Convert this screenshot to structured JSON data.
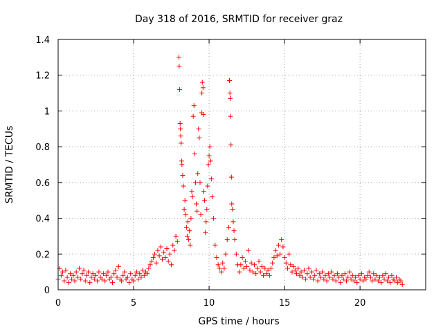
{
  "chart_data": {
    "type": "scatter",
    "title": "Day 318 of 2016, SRMTID for receiver graz",
    "xlabel": "GPS time / hours",
    "ylabel": "SRMTID / TECUs",
    "xlim": [
      0,
      24.35
    ],
    "ylim": [
      0,
      1.4
    ],
    "xticks": [
      0,
      5,
      10,
      15,
      20
    ],
    "xtick_labels": [
      "0",
      "5",
      "10",
      "15",
      "20"
    ],
    "yticks": [
      0,
      0.2,
      0.4,
      0.6,
      0.8,
      1,
      1.2,
      1.4
    ],
    "ytick_labels": [
      "0",
      "0.2",
      "0.4",
      "0.6",
      "0.8",
      "1",
      "1.2",
      "1.4"
    ],
    "grid": true,
    "marker": "+",
    "color": "#ff0000",
    "series": [
      {
        "name": "SRMTID",
        "points": [
          [
            0.0,
            0.06
          ],
          [
            0.1,
            0.12
          ],
          [
            0.2,
            0.08
          ],
          [
            0.3,
            0.1
          ],
          [
            0.4,
            0.05
          ],
          [
            0.5,
            0.11
          ],
          [
            0.6,
            0.07
          ],
          [
            0.7,
            0.04
          ],
          [
            0.8,
            0.09
          ],
          [
            0.9,
            0.06
          ],
          [
            1.0,
            0.08
          ],
          [
            1.1,
            0.05
          ],
          [
            1.2,
            0.1
          ],
          [
            1.3,
            0.07
          ],
          [
            1.4,
            0.12
          ],
          [
            1.5,
            0.06
          ],
          [
            1.6,
            0.09
          ],
          [
            1.7,
            0.11
          ],
          [
            1.8,
            0.05
          ],
          [
            1.9,
            0.08
          ],
          [
            2.0,
            0.1
          ],
          [
            2.1,
            0.04
          ],
          [
            2.2,
            0.07
          ],
          [
            2.3,
            0.09
          ],
          [
            2.4,
            0.06
          ],
          [
            2.5,
            0.08
          ],
          [
            2.6,
            0.05
          ],
          [
            2.7,
            0.1
          ],
          [
            2.8,
            0.07
          ],
          [
            2.9,
            0.06
          ],
          [
            3.0,
            0.09
          ],
          [
            3.1,
            0.05
          ],
          [
            3.2,
            0.08
          ],
          [
            3.3,
            0.1
          ],
          [
            3.4,
            0.06
          ],
          [
            3.5,
            0.07
          ],
          [
            3.6,
            0.04
          ],
          [
            3.7,
            0.09
          ],
          [
            3.8,
            0.11
          ],
          [
            3.9,
            0.07
          ],
          [
            4.0,
            0.13
          ],
          [
            4.1,
            0.06
          ],
          [
            4.2,
            0.05
          ],
          [
            4.3,
            0.08
          ],
          [
            4.4,
            0.1
          ],
          [
            4.5,
            0.06
          ],
          [
            4.6,
            0.07
          ],
          [
            4.7,
            0.04
          ],
          [
            4.8,
            0.09
          ],
          [
            4.9,
            0.06
          ],
          [
            5.0,
            0.05
          ],
          [
            5.1,
            0.08
          ],
          [
            5.2,
            0.1
          ],
          [
            5.3,
            0.06
          ],
          [
            5.4,
            0.09
          ],
          [
            5.5,
            0.07
          ],
          [
            5.6,
            0.11
          ],
          [
            5.7,
            0.08
          ],
          [
            5.8,
            0.1
          ],
          [
            5.9,
            0.09
          ],
          [
            6.0,
            0.12
          ],
          [
            6.1,
            0.14
          ],
          [
            6.2,
            0.16
          ],
          [
            6.3,
            0.18
          ],
          [
            6.4,
            0.2
          ],
          [
            6.5,
            0.15
          ],
          [
            6.6,
            0.22
          ],
          [
            6.7,
            0.19
          ],
          [
            6.8,
            0.24
          ],
          [
            6.9,
            0.17
          ],
          [
            7.0,
            0.21
          ],
          [
            7.1,
            0.18
          ],
          [
            7.2,
            0.23
          ],
          [
            7.3,
            0.16
          ],
          [
            7.4,
            0.2
          ],
          [
            7.5,
            0.14
          ],
          [
            7.6,
            0.25
          ],
          [
            7.7,
            0.22
          ],
          [
            7.8,
            0.3
          ],
          [
            7.9,
            0.27
          ],
          [
            8.0,
            1.3
          ],
          [
            8.02,
            1.25
          ],
          [
            8.05,
            1.12
          ],
          [
            8.08,
            0.93
          ],
          [
            8.1,
            0.9
          ],
          [
            8.12,
            0.86
          ],
          [
            8.15,
            0.82
          ],
          [
            8.18,
            0.72
          ],
          [
            8.2,
            0.7
          ],
          [
            8.25,
            0.64
          ],
          [
            8.3,
            0.58
          ],
          [
            8.35,
            0.45
          ],
          [
            8.4,
            0.5
          ],
          [
            8.45,
            0.42
          ],
          [
            8.5,
            0.35
          ],
          [
            8.55,
            0.3
          ],
          [
            8.6,
            0.38
          ],
          [
            8.65,
            0.28
          ],
          [
            8.7,
            0.33
          ],
          [
            8.75,
            0.25
          ],
          [
            8.8,
            0.4
          ],
          [
            8.85,
            0.55
          ],
          [
            8.9,
            0.52
          ],
          [
            8.95,
            0.97
          ],
          [
            9.0,
            1.03
          ],
          [
            9.05,
            0.76
          ],
          [
            9.1,
            0.6
          ],
          [
            9.15,
            0.48
          ],
          [
            9.2,
            0.44
          ],
          [
            9.25,
            0.65
          ],
          [
            9.3,
            0.9
          ],
          [
            9.35,
            0.85
          ],
          [
            9.4,
            0.6
          ],
          [
            9.45,
            0.42
          ],
          [
            9.5,
            0.99
          ],
          [
            9.52,
            1.1
          ],
          [
            9.55,
            1.16
          ],
          [
            9.6,
            1.13
          ],
          [
            9.62,
            0.98
          ],
          [
            9.65,
            0.55
          ],
          [
            9.7,
            0.5
          ],
          [
            9.75,
            0.32
          ],
          [
            9.8,
            0.38
          ],
          [
            9.85,
            0.45
          ],
          [
            9.9,
            0.58
          ],
          [
            9.95,
            0.7
          ],
          [
            10.0,
            0.75
          ],
          [
            10.05,
            0.8
          ],
          [
            10.1,
            0.72
          ],
          [
            10.15,
            0.62
          ],
          [
            10.2,
            0.52
          ],
          [
            10.3,
            0.4
          ],
          [
            10.4,
            0.25
          ],
          [
            10.5,
            0.18
          ],
          [
            10.6,
            0.14
          ],
          [
            10.7,
            0.12
          ],
          [
            10.8,
            0.1
          ],
          [
            10.9,
            0.15
          ],
          [
            11.0,
            0.12
          ],
          [
            11.1,
            0.2
          ],
          [
            11.2,
            0.28
          ],
          [
            11.3,
            0.35
          ],
          [
            11.35,
            1.17
          ],
          [
            11.38,
            1.1
          ],
          [
            11.4,
            1.07
          ],
          [
            11.42,
            0.97
          ],
          [
            11.45,
            0.81
          ],
          [
            11.48,
            0.63
          ],
          [
            11.5,
            0.48
          ],
          [
            11.55,
            0.45
          ],
          [
            11.6,
            0.38
          ],
          [
            11.65,
            0.33
          ],
          [
            11.7,
            0.28
          ],
          [
            11.8,
            0.2
          ],
          [
            11.9,
            0.14
          ],
          [
            12.0,
            0.1
          ],
          [
            12.1,
            0.14
          ],
          [
            12.2,
            0.18
          ],
          [
            12.3,
            0.12
          ],
          [
            12.4,
            0.16
          ],
          [
            12.5,
            0.13
          ],
          [
            12.6,
            0.22
          ],
          [
            12.7,
            0.11
          ],
          [
            12.8,
            0.15
          ],
          [
            12.9,
            0.1
          ],
          [
            13.0,
            0.14
          ],
          [
            13.1,
            0.09
          ],
          [
            13.2,
            0.12
          ],
          [
            13.3,
            0.16
          ],
          [
            13.4,
            0.1
          ],
          [
            13.5,
            0.13
          ],
          [
            13.6,
            0.08
          ],
          [
            13.7,
            0.12
          ],
          [
            13.8,
            0.09
          ],
          [
            13.9,
            0.11
          ],
          [
            14.0,
            0.08
          ],
          [
            14.1,
            0.12
          ],
          [
            14.2,
            0.15
          ],
          [
            14.3,
            0.18
          ],
          [
            14.4,
            0.22
          ],
          [
            14.5,
            0.19
          ],
          [
            14.6,
            0.25
          ],
          [
            14.7,
            0.2
          ],
          [
            14.8,
            0.28
          ],
          [
            14.9,
            0.24
          ],
          [
            15.0,
            0.18
          ],
          [
            15.1,
            0.15
          ],
          [
            15.2,
            0.12
          ],
          [
            15.3,
            0.2
          ],
          [
            15.4,
            0.14
          ],
          [
            15.5,
            0.1
          ],
          [
            15.6,
            0.13
          ],
          [
            15.7,
            0.11
          ],
          [
            15.8,
            0.09
          ],
          [
            15.9,
            0.12
          ],
          [
            16.0,
            0.08
          ],
          [
            16.1,
            0.1
          ],
          [
            16.2,
            0.07
          ],
          [
            16.3,
            0.11
          ],
          [
            16.4,
            0.06
          ],
          [
            16.5,
            0.09
          ],
          [
            16.6,
            0.12
          ],
          [
            16.7,
            0.07
          ],
          [
            16.8,
            0.1
          ],
          [
            16.9,
            0.06
          ],
          [
            17.0,
            0.08
          ],
          [
            17.1,
            0.11
          ],
          [
            17.2,
            0.05
          ],
          [
            17.3,
            0.09
          ],
          [
            17.4,
            0.07
          ],
          [
            17.5,
            0.1
          ],
          [
            17.6,
            0.06
          ],
          [
            17.7,
            0.08
          ],
          [
            17.8,
            0.05
          ],
          [
            17.9,
            0.09
          ],
          [
            18.0,
            0.07
          ],
          [
            18.1,
            0.1
          ],
          [
            18.2,
            0.06
          ],
          [
            18.3,
            0.08
          ],
          [
            18.4,
            0.05
          ],
          [
            18.5,
            0.09
          ],
          [
            18.6,
            0.07
          ],
          [
            18.7,
            0.04
          ],
          [
            18.8,
            0.08
          ],
          [
            18.9,
            0.06
          ],
          [
            19.0,
            0.09
          ],
          [
            19.1,
            0.05
          ],
          [
            19.2,
            0.07
          ],
          [
            19.3,
            0.1
          ],
          [
            19.4,
            0.06
          ],
          [
            19.5,
            0.08
          ],
          [
            19.6,
            0.05
          ],
          [
            19.7,
            0.07
          ],
          [
            19.8,
            0.04
          ],
          [
            19.9,
            0.08
          ],
          [
            20.0,
            0.06
          ],
          [
            20.1,
            0.09
          ],
          [
            20.2,
            0.05
          ],
          [
            20.3,
            0.07
          ],
          [
            20.4,
            0.06
          ],
          [
            20.5,
            0.08
          ],
          [
            20.6,
            0.1
          ],
          [
            20.7,
            0.07
          ],
          [
            20.8,
            0.05
          ],
          [
            20.9,
            0.09
          ],
          [
            21.0,
            0.06
          ],
          [
            21.1,
            0.08
          ],
          [
            21.2,
            0.05
          ],
          [
            21.3,
            0.07
          ],
          [
            21.4,
            0.04
          ],
          [
            21.5,
            0.08
          ],
          [
            21.6,
            0.06
          ],
          [
            21.7,
            0.09
          ],
          [
            21.8,
            0.05
          ],
          [
            21.9,
            0.07
          ],
          [
            22.0,
            0.04
          ],
          [
            22.1,
            0.08
          ],
          [
            22.2,
            0.06
          ],
          [
            22.3,
            0.05
          ],
          [
            22.4,
            0.07
          ],
          [
            22.5,
            0.04
          ],
          [
            22.6,
            0.06
          ],
          [
            22.7,
            0.05
          ],
          [
            22.8,
            0.03
          ]
        ]
      }
    ]
  }
}
